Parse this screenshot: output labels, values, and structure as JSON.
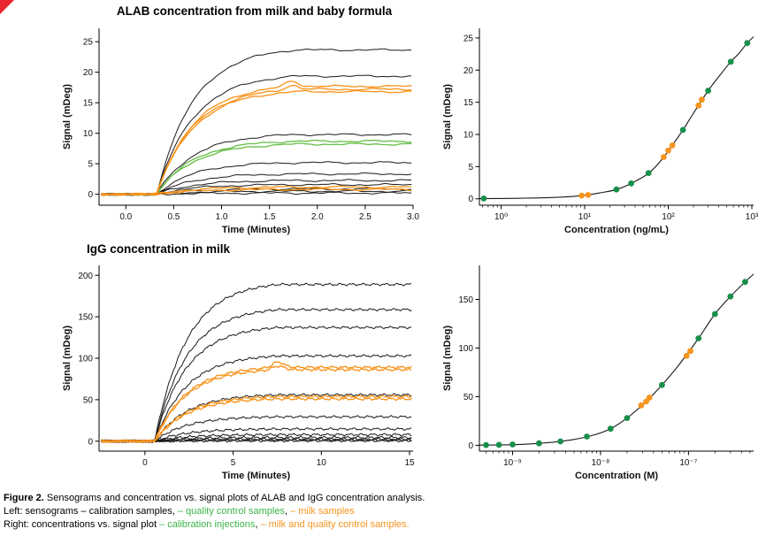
{
  "figure_label": "Figure 2.",
  "accent_colors": {
    "green_curve": "#6abf4b",
    "green_dot": "#188f4b",
    "orange": "#f7941d",
    "black": "#1a1a1a",
    "corner_red": "#e8262d"
  },
  "caption": {
    "label": "Figure 2.",
    "line1": "Sensograms and concentration vs. signal plots of ALAB and IgG concentration analysis.",
    "line2": [
      {
        "text": "Left: sensograms – calibration samples, ",
        "color": "#000000"
      },
      {
        "text": "– quality control samples",
        "color": "#3bb54a"
      },
      {
        "text": ", ",
        "color": "#000000"
      },
      {
        "text": "– milk samples",
        "color": "#f7941d"
      }
    ],
    "line3": [
      {
        "text": "Right: concentrations vs. signal plot ",
        "color": "#000000"
      },
      {
        "text": "– calibration injections",
        "color": "#3bb54a"
      },
      {
        "text": ", ",
        "color": "#000000"
      },
      {
        "text": "– milk and quality control samples.",
        "color": "#f7941d"
      }
    ]
  },
  "chart_data": [
    {
      "type": "line",
      "subtype": "sensorgram",
      "title": "ALAB concentration from milk and baby formula",
      "xlabel": "Time (Minutes)",
      "ylabel": "Signal (mDeg)",
      "xlim": [
        -0.28,
        3.0
      ],
      "ylim": [
        -1.8,
        27.2
      ],
      "xticks": [
        0,
        0.5,
        1,
        1.5,
        2,
        2.5,
        3
      ],
      "xtick_labels": [
        "0.0",
        "0.5",
        "1.0",
        "1.5",
        "2.0",
        "2.5",
        "3.0"
      ],
      "yticks": [
        0,
        5,
        10,
        15,
        20,
        25
      ],
      "grid": false,
      "rise_start": 0.32,
      "rise_end": 1.78,
      "rise_rate": 2.6,
      "noise": 0.1,
      "series": [
        {
          "name": "calibration",
          "color": "#1a1a1a",
          "plateau": 24.2
        },
        {
          "name": "calibration",
          "color": "#1a1a1a",
          "plateau": 19.8
        },
        {
          "name": "calibration",
          "color": "#1a1a1a",
          "plateau": 10.0
        },
        {
          "name": "calibration",
          "color": "#1a1a1a",
          "plateau": 5.3
        },
        {
          "name": "calibration",
          "color": "#1a1a1a",
          "plateau": 3.4
        },
        {
          "name": "calibration",
          "color": "#1a1a1a",
          "plateau": 2.3
        },
        {
          "name": "calibration",
          "color": "#1a1a1a",
          "plateau": 1.6
        },
        {
          "name": "calibration",
          "color": "#1a1a1a",
          "plateau": 0.9
        },
        {
          "name": "calibration",
          "color": "#1a1a1a",
          "plateau": 0.5
        },
        {
          "name": "calibration",
          "color": "#1a1a1a",
          "plateau": 0.2
        },
        {
          "name": "quality-control",
          "color": "#6abf4b",
          "plateau": 8.9
        },
        {
          "name": "quality-control",
          "color": "#6abf4b",
          "plateau": 8.4
        },
        {
          "name": "milk",
          "color": "#f7941d",
          "plateau": 18.1,
          "overshoot": 0.05
        },
        {
          "name": "milk",
          "color": "#f7941d",
          "plateau": 17.6,
          "overshoot": 0.04
        },
        {
          "name": "milk",
          "color": "#f7941d",
          "plateau": 17.2
        },
        {
          "name": "milk",
          "color": "#f7941d",
          "plateau": 1.2
        },
        {
          "name": "milk",
          "color": "#f7941d",
          "plateau": 0.8
        }
      ]
    },
    {
      "type": "scatter",
      "subtype": "dose_response",
      "title": "",
      "xlabel": "Concentration (ng/mL)",
      "ylabel": "Signal (mDeg)",
      "xscale": "log",
      "xlim": [
        0.55,
        1050
      ],
      "ylim": [
        -1.0,
        26.5
      ],
      "xticks": [
        1,
        10,
        100,
        1000
      ],
      "xtick_labels": [
        "10⁰",
        "10¹",
        "10²",
        "10³"
      ],
      "yticks": [
        0,
        5,
        10,
        15,
        20,
        25
      ],
      "grid": false,
      "curve": [
        [
          0.55,
          0.02
        ],
        [
          1,
          0.05
        ],
        [
          2,
          0.1
        ],
        [
          4,
          0.2
        ],
        [
          7,
          0.35
        ],
        [
          10,
          0.55
        ],
        [
          15,
          0.9
        ],
        [
          25,
          1.5
        ],
        [
          40,
          2.7
        ],
        [
          60,
          4.1
        ],
        [
          85,
          6.2
        ],
        [
          110,
          8.2
        ],
        [
          150,
          10.7
        ],
        [
          200,
          13.3
        ],
        [
          300,
          16.8
        ],
        [
          420,
          19.3
        ],
        [
          560,
          21.3
        ],
        [
          700,
          22.6
        ],
        [
          880,
          24.2
        ],
        [
          1050,
          25.2
        ]
      ],
      "points": {
        "green": [
          [
            0.62,
            0.05
          ],
          [
            24,
            1.45
          ],
          [
            36,
            2.4
          ],
          [
            58,
            4.0
          ],
          [
            150,
            10.7
          ],
          [
            300,
            16.8
          ],
          [
            560,
            21.3
          ],
          [
            880,
            24.2
          ]
        ],
        "orange": [
          [
            9.2,
            0.5
          ],
          [
            11,
            0.6
          ],
          [
            88,
            6.5
          ],
          [
            100,
            7.5
          ],
          [
            112,
            8.3
          ],
          [
            230,
            14.5
          ],
          [
            252,
            15.4
          ]
        ]
      },
      "point_colors": {
        "green": "#188f4b",
        "orange": "#f7941d"
      }
    },
    {
      "type": "line",
      "subtype": "sensorgram",
      "title": "IgG concentration in milk",
      "xlabel": "Time (Minutes)",
      "ylabel": "Signal (mDeg)",
      "xlim": [
        -2.6,
        15.2
      ],
      "ylim": [
        -12,
        212
      ],
      "xticks": [
        0,
        5,
        10,
        15
      ],
      "xtick_labels": [
        "0",
        "5",
        "10",
        "15"
      ],
      "yticks": [
        0,
        50,
        100,
        150,
        200
      ],
      "grid": false,
      "rise_start": 0.55,
      "rise_end": 7.6,
      "rise_rate": 0.55,
      "noise": 0.9,
      "series": [
        {
          "name": "calibration",
          "color": "#1a1a1a",
          "plateau": 193
        },
        {
          "name": "calibration",
          "color": "#1a1a1a",
          "plateau": 162
        },
        {
          "name": "calibration",
          "color": "#1a1a1a",
          "plateau": 140
        },
        {
          "name": "calibration",
          "color": "#1a1a1a",
          "plateau": 105
        },
        {
          "name": "calibration",
          "color": "#1a1a1a",
          "plateau": 57
        },
        {
          "name": "calibration",
          "color": "#1a1a1a",
          "plateau": 30
        },
        {
          "name": "calibration",
          "color": "#1a1a1a",
          "plateau": 15
        },
        {
          "name": "calibration",
          "color": "#1a1a1a",
          "plateau": 8
        },
        {
          "name": "calibration",
          "color": "#1a1a1a",
          "plateau": 4.5
        },
        {
          "name": "calibration",
          "color": "#1a1a1a",
          "plateau": 2.5
        },
        {
          "name": "calibration",
          "color": "#1a1a1a",
          "plateau": 1.2
        },
        {
          "name": "calibration",
          "color": "#1a1a1a",
          "plateau": 0.5
        },
        {
          "name": "milk",
          "color": "#f7941d",
          "plateau": 91,
          "overshoot": 0.07
        },
        {
          "name": "milk",
          "color": "#f7941d",
          "plateau": 88,
          "overshoot": 0.05
        },
        {
          "name": "milk",
          "color": "#f7941d",
          "plateau": 55
        },
        {
          "name": "milk",
          "color": "#f7941d",
          "plateau": 52
        }
      ]
    },
    {
      "type": "scatter",
      "subtype": "dose_response",
      "title": "",
      "xlabel": "Concentration (M)",
      "ylabel": "Signal (mDeg)",
      "xscale": "log",
      "xlim": [
        4.2e-10,
        5.5e-07
      ],
      "ylim": [
        -6,
        185
      ],
      "xticks": [
        1e-09,
        1e-08,
        1e-07
      ],
      "xtick_labels": [
        "10⁻⁹",
        "10⁻⁸",
        "10⁻⁷"
      ],
      "yticks": [
        0,
        50,
        100,
        150
      ],
      "grid": false,
      "curve": [
        [
          4.2e-10,
          0.2
        ],
        [
          8e-10,
          0.5
        ],
        [
          1.3e-09,
          1.0
        ],
        [
          2e-09,
          2.0
        ],
        [
          3.2e-09,
          3.6
        ],
        [
          5e-09,
          6.0
        ],
        [
          8e-09,
          10
        ],
        [
          1.3e-08,
          17
        ],
        [
          2e-08,
          28
        ],
        [
          3.2e-08,
          44
        ],
        [
          5e-08,
          62
        ],
        [
          8e-08,
          84
        ],
        [
          1.3e-07,
          110
        ],
        [
          2e-07,
          135
        ],
        [
          3e-07,
          153
        ],
        [
          4.4e-07,
          168
        ],
        [
          5.5e-07,
          176
        ]
      ],
      "points": {
        "green": [
          [
            5e-10,
            0.3
          ],
          [
            7e-10,
            0.5
          ],
          [
            1e-09,
            0.8
          ],
          [
            2e-09,
            2.0
          ],
          [
            3.5e-09,
            4.0
          ],
          [
            7e-09,
            9.0
          ],
          [
            1.3e-08,
            17
          ],
          [
            2e-08,
            28
          ],
          [
            5e-08,
            62
          ],
          [
            1.3e-07,
            110
          ],
          [
            2e-07,
            135
          ],
          [
            3e-07,
            153
          ],
          [
            4.4e-07,
            168
          ]
        ],
        "orange": [
          [
            2.9e-08,
            41
          ],
          [
            3.3e-08,
            45
          ],
          [
            3.6e-08,
            49
          ],
          [
            9.5e-08,
            92
          ],
          [
            1.05e-07,
            97
          ]
        ]
      },
      "point_colors": {
        "green": "#188f4b",
        "orange": "#f7941d"
      }
    }
  ]
}
